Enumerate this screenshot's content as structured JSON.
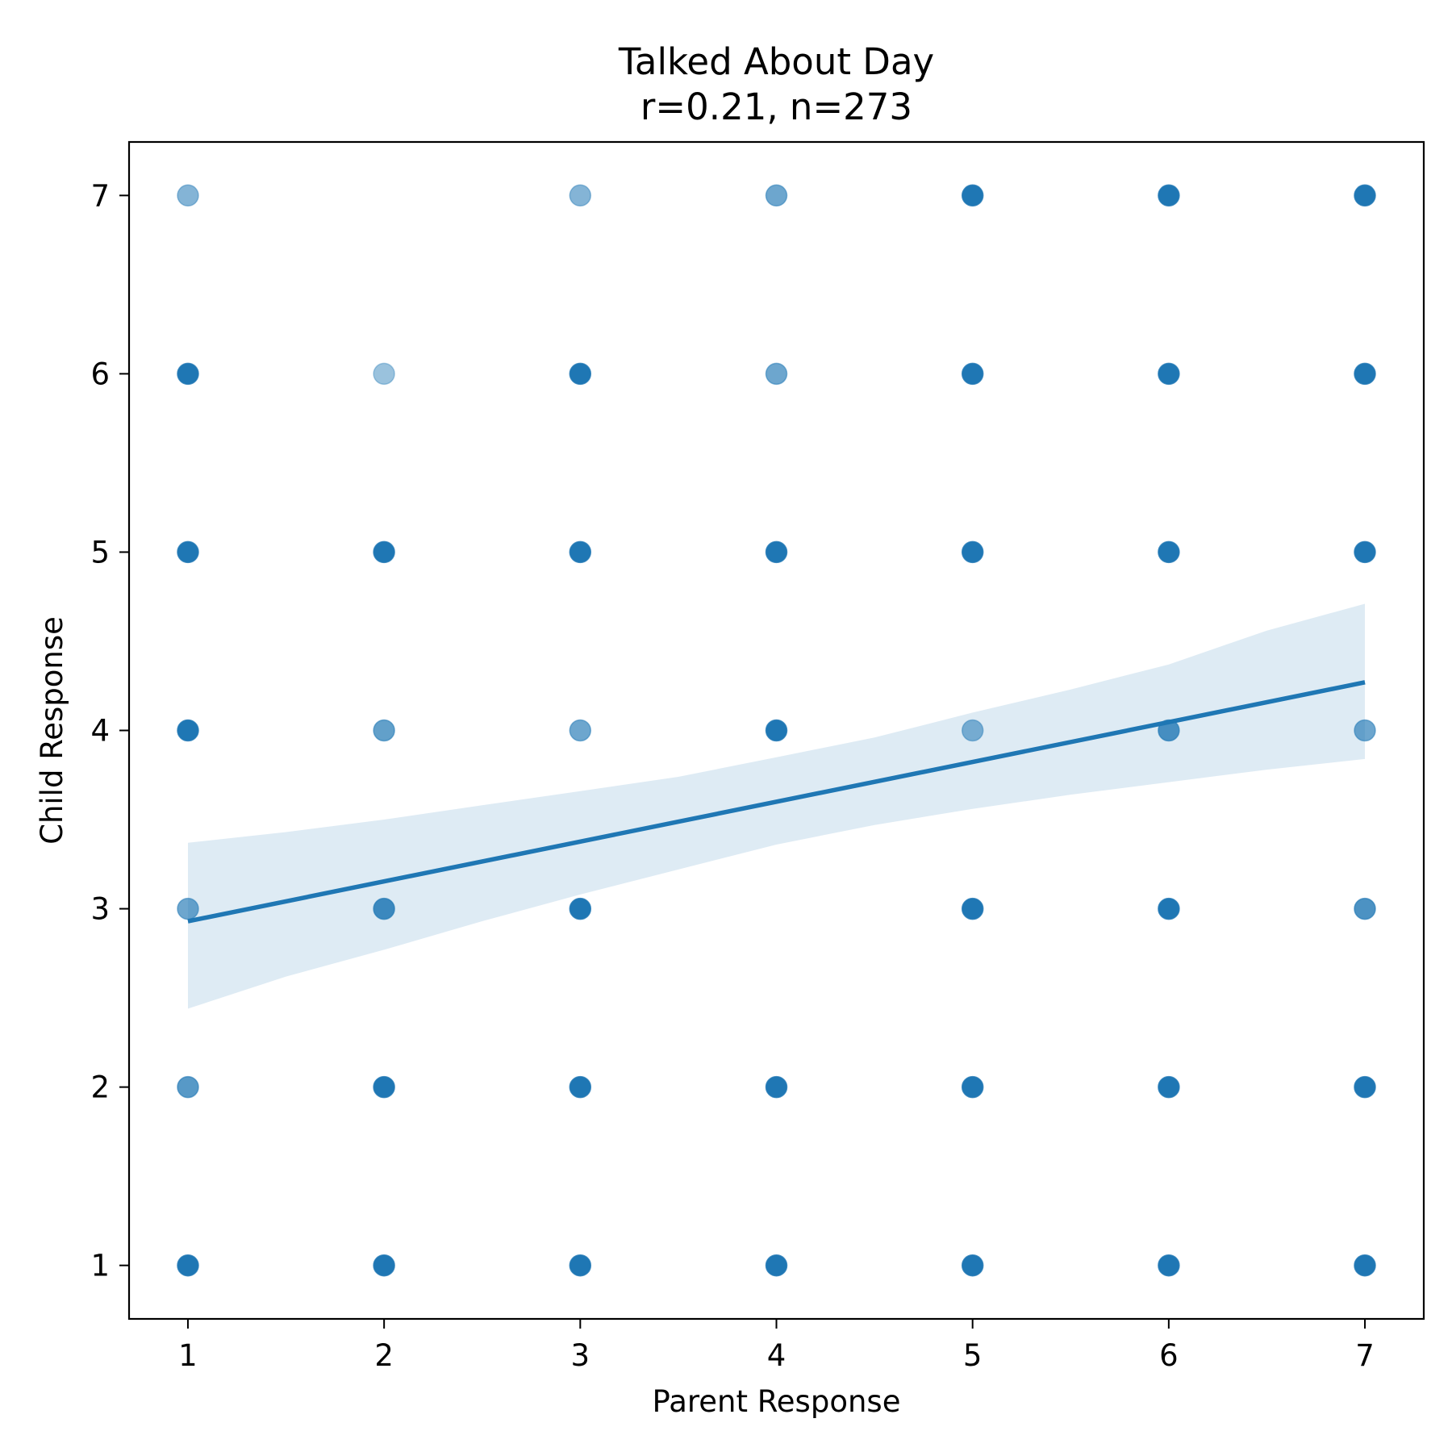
{
  "chart_data": {
    "type": "scatter",
    "title": "Talked About Day",
    "subtitle": "r=0.21, n=273",
    "xlabel": "Parent Response",
    "ylabel": "Child Response",
    "xlim": [
      0.7,
      7.3
    ],
    "ylim": [
      0.7,
      7.3
    ],
    "xticks": [
      "1",
      "2",
      "3",
      "4",
      "5",
      "6",
      "7"
    ],
    "yticks": [
      "1",
      "2",
      "3",
      "4",
      "5",
      "6",
      "7"
    ],
    "grid": false,
    "colors": {
      "points": "#1f77b4",
      "line": "#1f77b4",
      "band": "#1f77b4"
    },
    "points": [
      {
        "x": 1,
        "y": 7,
        "alpha": 0.55
      },
      {
        "x": 3,
        "y": 7,
        "alpha": 0.55
      },
      {
        "x": 4,
        "y": 7,
        "alpha": 0.65
      },
      {
        "x": 5,
        "y": 7,
        "alpha": 1
      },
      {
        "x": 6,
        "y": 7,
        "alpha": 1
      },
      {
        "x": 7,
        "y": 7,
        "alpha": 1
      },
      {
        "x": 1,
        "y": 6,
        "alpha": 1
      },
      {
        "x": 2,
        "y": 6,
        "alpha": 0.45
      },
      {
        "x": 3,
        "y": 6,
        "alpha": 1
      },
      {
        "x": 4,
        "y": 6,
        "alpha": 0.65
      },
      {
        "x": 5,
        "y": 6,
        "alpha": 1
      },
      {
        "x": 6,
        "y": 6,
        "alpha": 1
      },
      {
        "x": 7,
        "y": 6,
        "alpha": 1
      },
      {
        "x": 1,
        "y": 5,
        "alpha": 1
      },
      {
        "x": 2,
        "y": 5,
        "alpha": 1
      },
      {
        "x": 3,
        "y": 5,
        "alpha": 1
      },
      {
        "x": 4,
        "y": 5,
        "alpha": 1
      },
      {
        "x": 5,
        "y": 5,
        "alpha": 1
      },
      {
        "x": 6,
        "y": 5,
        "alpha": 1
      },
      {
        "x": 7,
        "y": 5,
        "alpha": 1
      },
      {
        "x": 1,
        "y": 4,
        "alpha": 1
      },
      {
        "x": 2,
        "y": 4,
        "alpha": 0.7
      },
      {
        "x": 3,
        "y": 4,
        "alpha": 0.65
      },
      {
        "x": 4,
        "y": 4,
        "alpha": 1
      },
      {
        "x": 5,
        "y": 4,
        "alpha": 0.55
      },
      {
        "x": 6,
        "y": 4,
        "alpha": 0.8
      },
      {
        "x": 7,
        "y": 4,
        "alpha": 0.65
      },
      {
        "x": 1,
        "y": 3,
        "alpha": 0.65
      },
      {
        "x": 2,
        "y": 3,
        "alpha": 0.85
      },
      {
        "x": 3,
        "y": 3,
        "alpha": 1
      },
      {
        "x": 5,
        "y": 3,
        "alpha": 1
      },
      {
        "x": 6,
        "y": 3,
        "alpha": 1
      },
      {
        "x": 7,
        "y": 3,
        "alpha": 0.8
      },
      {
        "x": 1,
        "y": 2,
        "alpha": 0.75
      },
      {
        "x": 2,
        "y": 2,
        "alpha": 1
      },
      {
        "x": 3,
        "y": 2,
        "alpha": 1
      },
      {
        "x": 4,
        "y": 2,
        "alpha": 1
      },
      {
        "x": 5,
        "y": 2,
        "alpha": 1
      },
      {
        "x": 6,
        "y": 2,
        "alpha": 1
      },
      {
        "x": 7,
        "y": 2,
        "alpha": 1
      },
      {
        "x": 1,
        "y": 1,
        "alpha": 1
      },
      {
        "x": 2,
        "y": 1,
        "alpha": 1
      },
      {
        "x": 3,
        "y": 1,
        "alpha": 1
      },
      {
        "x": 4,
        "y": 1,
        "alpha": 1
      },
      {
        "x": 5,
        "y": 1,
        "alpha": 1
      },
      {
        "x": 6,
        "y": 1,
        "alpha": 1
      },
      {
        "x": 7,
        "y": 1,
        "alpha": 1
      }
    ],
    "regression_line": {
      "x": [
        1,
        7
      ],
      "y": [
        2.93,
        4.27
      ]
    },
    "confidence_band": {
      "x": [
        1,
        1.5,
        2,
        2.5,
        3,
        3.5,
        4,
        4.5,
        5,
        5.5,
        6,
        6.5,
        7
      ],
      "upper": [
        3.37,
        3.43,
        3.5,
        3.58,
        3.66,
        3.74,
        3.85,
        3.96,
        4.1,
        4.23,
        4.37,
        4.56,
        4.71
      ],
      "lower": [
        2.44,
        2.62,
        2.77,
        2.93,
        3.08,
        3.22,
        3.36,
        3.47,
        3.56,
        3.64,
        3.71,
        3.78,
        3.84
      ]
    }
  }
}
